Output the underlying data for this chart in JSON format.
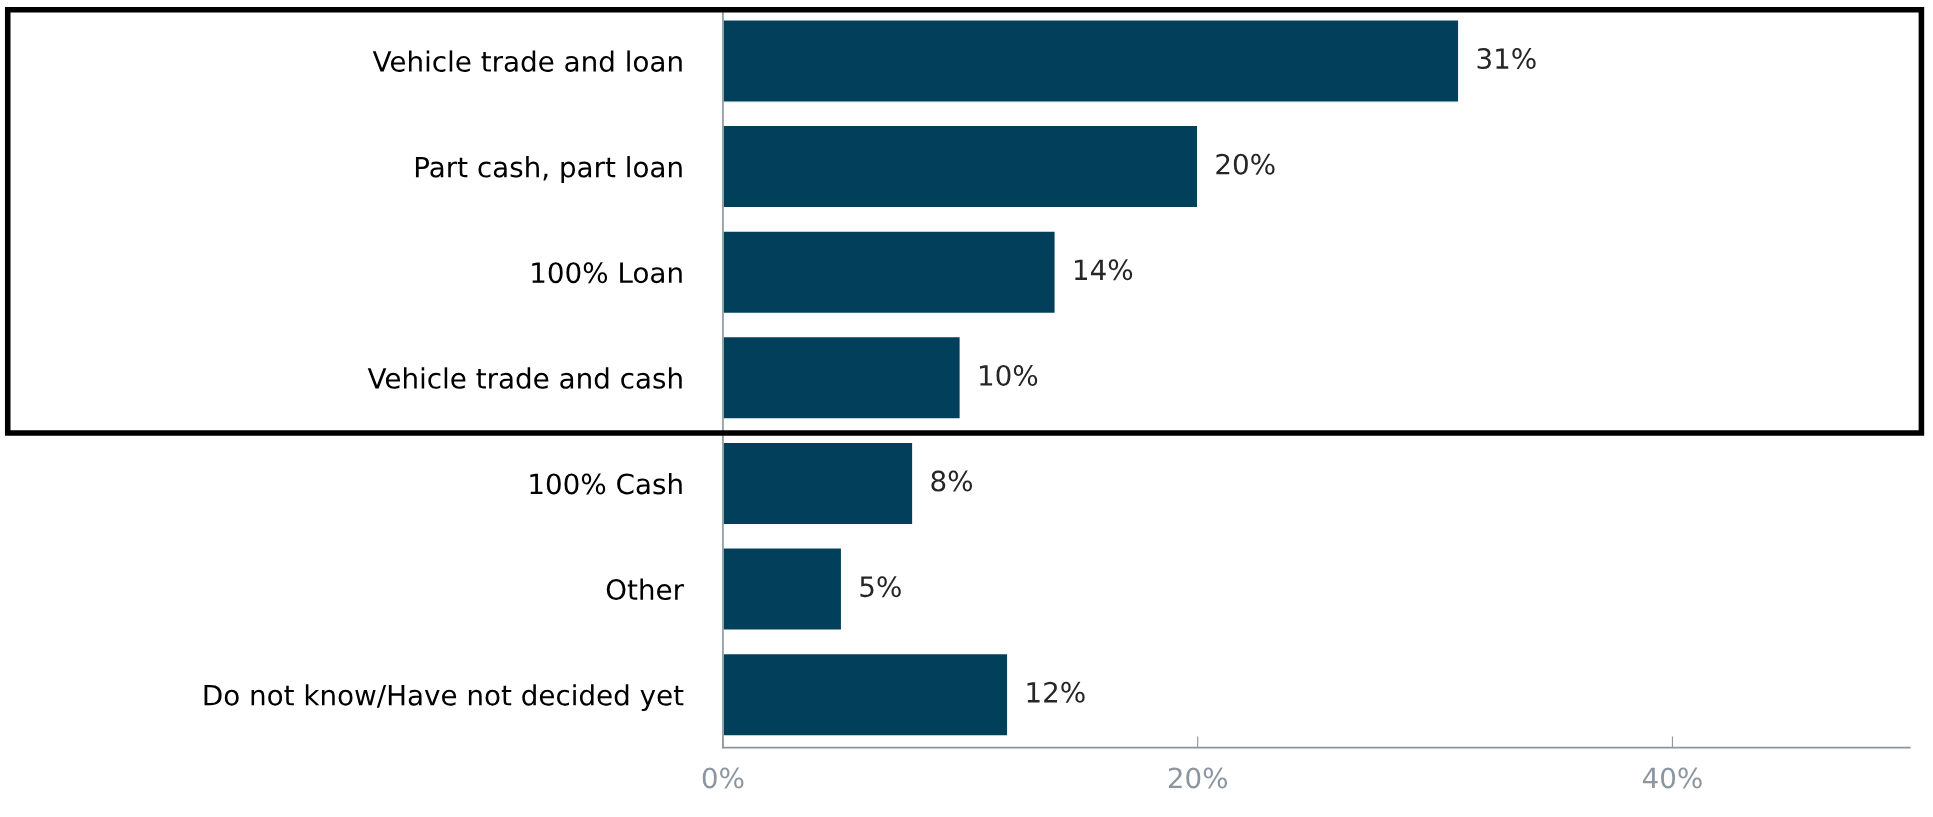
{
  "chart_data": {
    "type": "bar",
    "orientation": "horizontal",
    "categories": [
      "Vehicle trade and loan",
      "Part cash, part loan",
      "100% Loan",
      "Vehicle trade and cash",
      "100% Cash",
      "Other",
      "Do not know/Have not decided yet"
    ],
    "values": [
      31,
      20,
      14,
      10,
      8,
      5,
      12
    ],
    "value_labels": [
      "31%",
      "20%",
      "14%",
      "10%",
      "8%",
      "5%",
      "12%"
    ],
    "color": "#023f5a",
    "xlim": [
      0,
      50
    ],
    "xticks": [
      {
        "value": 0,
        "label": "0%"
      },
      {
        "value": 20,
        "label": "20%"
      },
      {
        "value": 40,
        "label": "40%"
      }
    ],
    "grid": false,
    "legend": false
  }
}
